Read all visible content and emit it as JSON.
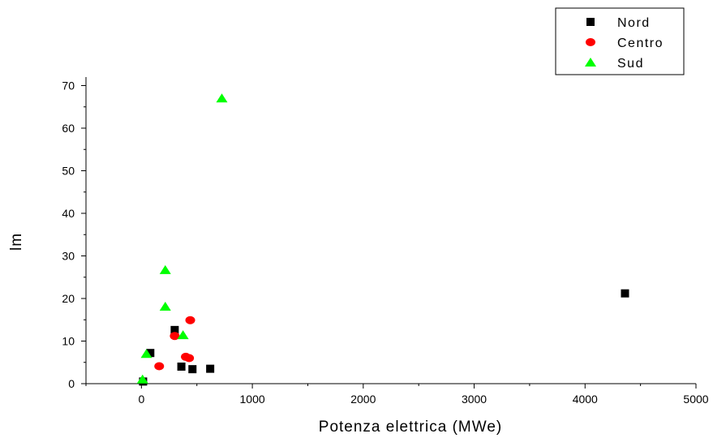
{
  "chart_data": {
    "type": "scatter",
    "xlabel": "Potenza elettrica (MWe)",
    "ylabel": "lm",
    "xlim": [
      -500,
      5000
    ],
    "ylim": [
      0,
      72
    ],
    "x_ticks": [
      0,
      1000,
      2000,
      3000,
      4000,
      5000
    ],
    "y_ticks": [
      0,
      10,
      20,
      30,
      40,
      50,
      60,
      70
    ],
    "legend_position": "top-right",
    "grid": false,
    "series": [
      {
        "name": "Nord",
        "marker": "square",
        "color": "#000000",
        "points": [
          {
            "x": 15,
            "y": 0.5
          },
          {
            "x": 80,
            "y": 7.2
          },
          {
            "x": 300,
            "y": 12.6
          },
          {
            "x": 360,
            "y": 4.0
          },
          {
            "x": 460,
            "y": 3.4
          },
          {
            "x": 620,
            "y": 3.5
          },
          {
            "x": 4360,
            "y": 21.2
          }
        ]
      },
      {
        "name": "Centro",
        "marker": "circle",
        "color": "#ff0000",
        "points": [
          {
            "x": 160,
            "y": 4.1
          },
          {
            "x": 300,
            "y": 11.2
          },
          {
            "x": 400,
            "y": 6.3
          },
          {
            "x": 430,
            "y": 6.0
          },
          {
            "x": 440,
            "y": 14.9
          }
        ]
      },
      {
        "name": "Sud",
        "marker": "triangle",
        "color": "#00ff00",
        "points": [
          {
            "x": 10,
            "y": 1.0
          },
          {
            "x": 45,
            "y": 7.0
          },
          {
            "x": 215,
            "y": 26.7
          },
          {
            "x": 215,
            "y": 18.1
          },
          {
            "x": 375,
            "y": 11.4
          },
          {
            "x": 725,
            "y": 67.0
          }
        ]
      }
    ]
  }
}
